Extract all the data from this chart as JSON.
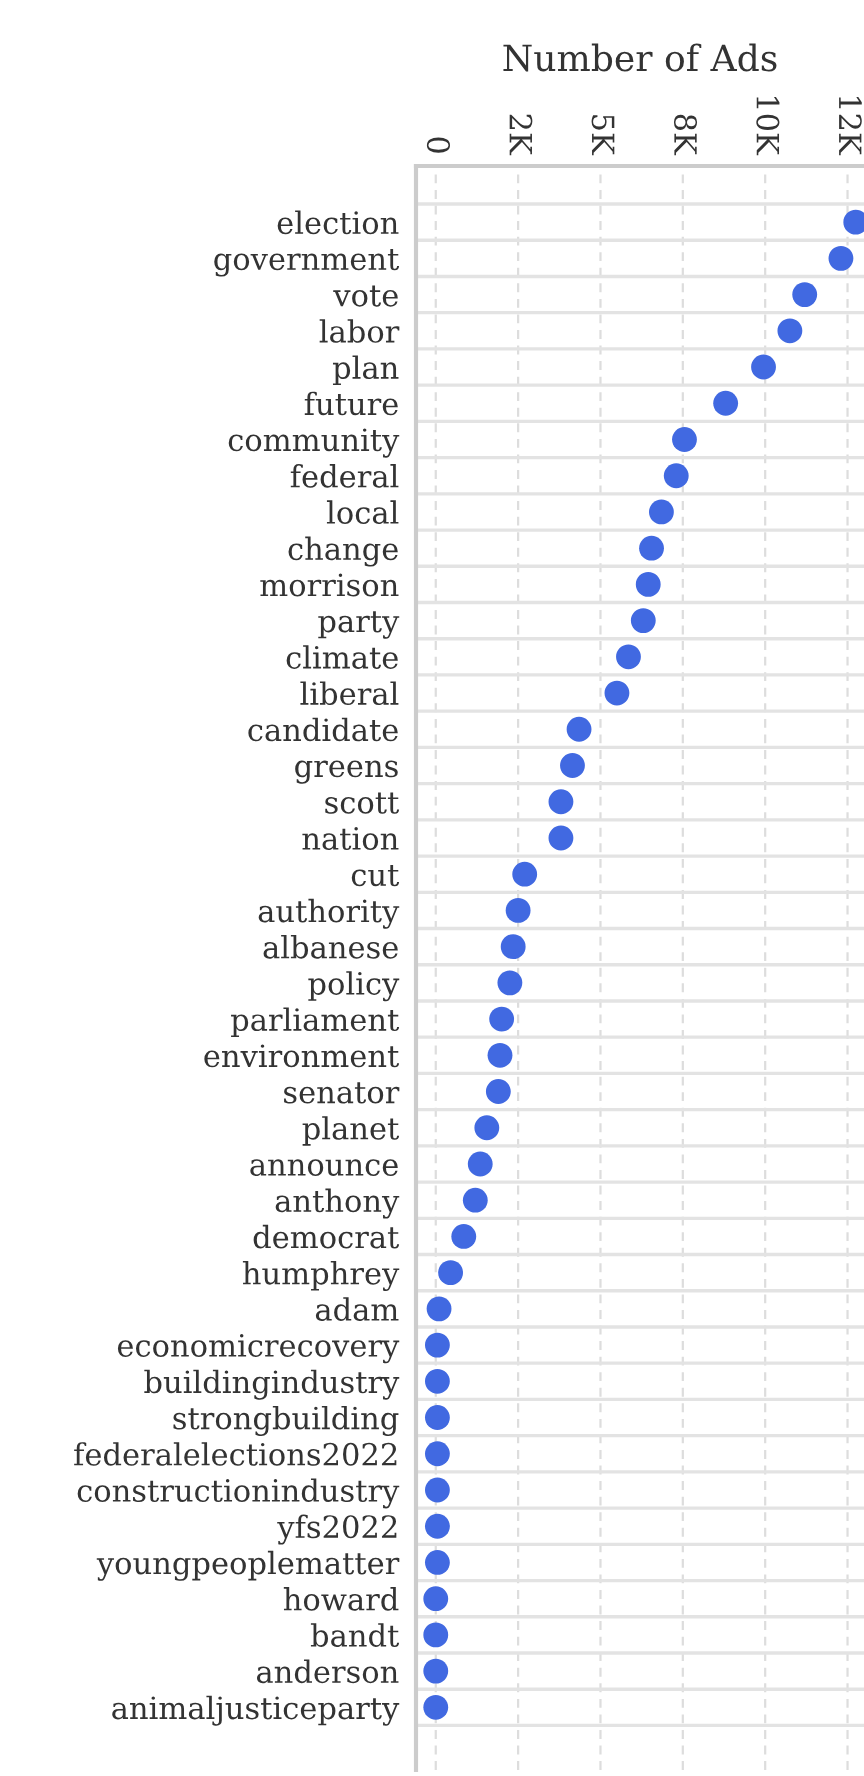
{
  "chart_data": {
    "type": "scatter",
    "orientation": "horizontal",
    "xlabel": "Number of Ads",
    "categories": [
      "election",
      "government",
      "vote",
      "labor",
      "plan",
      "future",
      "community",
      "federal",
      "local",
      "change",
      "morrison",
      "party",
      "climate",
      "liberal",
      "candidate",
      "greens",
      "scott",
      "nation",
      "cut",
      "authority",
      "albanese",
      "policy",
      "parliament",
      "environment",
      "senator",
      "planet",
      "announce",
      "anthony",
      "democrat",
      "humphrey",
      "adam",
      "economicrecovery",
      "buildingindustry",
      "strongbuilding",
      "federalelections2022",
      "constructionindustry",
      "yfs2022",
      "youngpeoplematter",
      "howard",
      "bandt",
      "anderson",
      "animaljusticeparty"
    ],
    "series": [
      {
        "color": "#4169e1",
        "values": [
          12750,
          12300,
          11200,
          10750,
          9950,
          8800,
          7550,
          7300,
          6850,
          6550,
          6450,
          6300,
          5850,
          5500,
          4350,
          4150,
          3800,
          3800,
          2700,
          2500,
          2350,
          2250,
          2000,
          1950,
          1900,
          1550,
          1350,
          1200,
          850,
          450,
          100,
          50,
          50,
          50,
          50,
          50,
          50,
          50,
          0,
          0,
          0,
          0
        ]
      }
    ],
    "xlim": [
      -600,
      13000
    ],
    "xticks": [
      0,
      {
        "value": 2500,
        "label": "2K"
      },
      {
        "value": 5000,
        "label": "5K"
      },
      {
        "value": 7500,
        "label": "8K"
      },
      {
        "value": 10000,
        "label": "10K"
      },
      {
        "value": 12500,
        "label": "12K"
      }
    ],
    "grid": true,
    "marker": "circle",
    "legend": false
  }
}
